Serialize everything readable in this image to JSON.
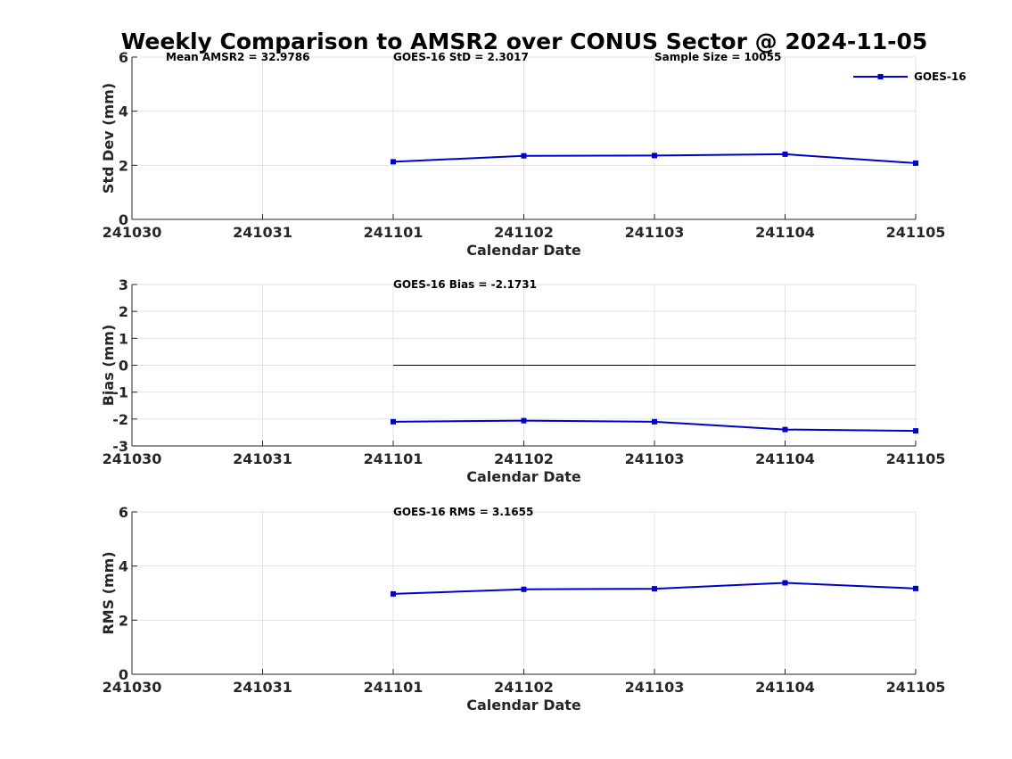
{
  "title": "Weekly Comparison to AMSR2 over CONUS Sector @ 2024-11-05",
  "series_color": "#0000cc",
  "chart_data": [
    {
      "type": "line",
      "x": [
        "241030",
        "241031",
        "241101",
        "241102",
        "241103",
        "241104",
        "241105"
      ],
      "xlabel": "Calendar Date",
      "ylabel": "Std Dev (mm)",
      "ylim": [
        0,
        6
      ],
      "yticks": [
        "0",
        "2",
        "4",
        "6"
      ],
      "grid": true,
      "legend": "top-right",
      "annotations": [
        "Mean AMSR2 = 32.9786",
        "GOES-16 StD = 2.3017",
        "Sample Size = 10055"
      ],
      "series": [
        {
          "name": "GOES-16",
          "values": [
            null,
            null,
            2.13,
            2.35,
            2.36,
            2.41,
            2.08
          ]
        }
      ]
    },
    {
      "type": "line",
      "x": [
        "241030",
        "241031",
        "241101",
        "241102",
        "241103",
        "241104",
        "241105"
      ],
      "xlabel": "Calendar Date",
      "ylabel": "Bias (mm)",
      "ylim": [
        -3,
        3
      ],
      "yticks": [
        "-3",
        "-2",
        "-1",
        "0",
        "1",
        "2",
        "3"
      ],
      "grid": true,
      "zero_line": true,
      "annotations": [
        "GOES-16 Bias  = -2.1731"
      ],
      "series": [
        {
          "values": [
            null,
            null,
            -2.1,
            -2.06,
            -2.1,
            -2.39,
            -2.44
          ]
        }
      ]
    },
    {
      "type": "line",
      "x": [
        "241030",
        "241031",
        "241101",
        "241102",
        "241103",
        "241104",
        "241105"
      ],
      "xlabel": "Calendar Date",
      "ylabel": "RMS (mm)",
      "ylim": [
        0,
        6
      ],
      "yticks": [
        "0",
        "2",
        "4",
        "6"
      ],
      "grid": true,
      "annotations": [
        "GOES-16 RMS = 3.1655"
      ],
      "series": [
        {
          "values": [
            null,
            null,
            2.97,
            3.14,
            3.16,
            3.38,
            3.17
          ]
        }
      ]
    }
  ]
}
